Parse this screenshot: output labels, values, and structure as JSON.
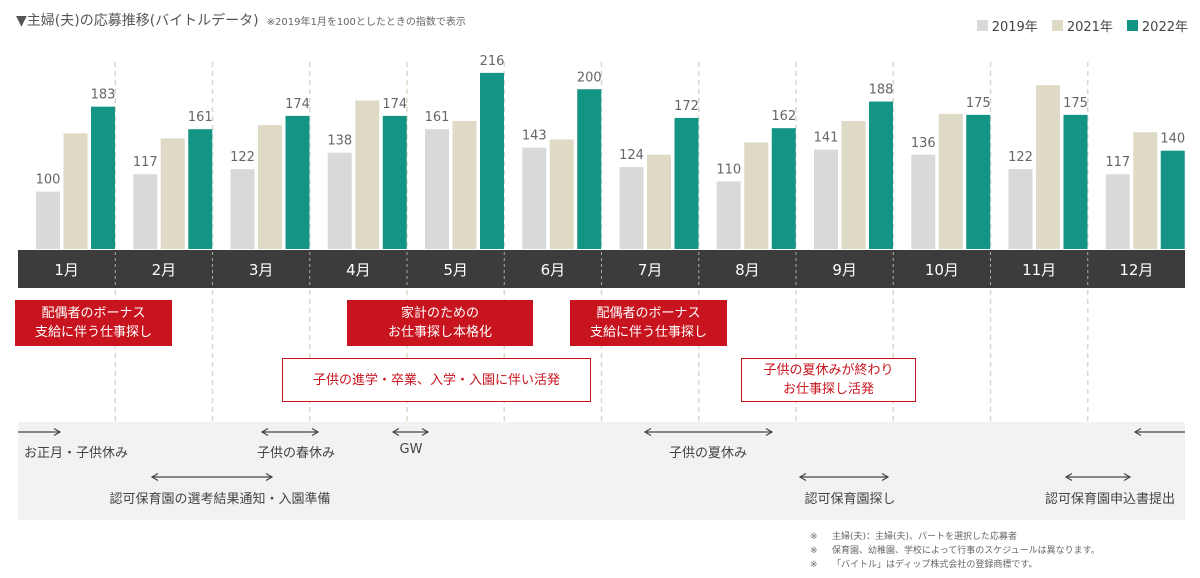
{
  "title": "▼主婦(夫)の応募推移(バイトルデータ)",
  "subtitle": "※2019年1月を100としたときの指数で表示",
  "chart_data": {
    "type": "bar",
    "categories": [
      "1月",
      "2月",
      "3月",
      "4月",
      "5月",
      "6月",
      "7月",
      "8月",
      "9月",
      "10月",
      "11月",
      "12月"
    ],
    "series": [
      {
        "name": "2019年",
        "color": "#d9d9d9",
        "labeled": true,
        "values": [
          100,
          117,
          122,
          138,
          161,
          143,
          124,
          110,
          141,
          136,
          122,
          117
        ]
      },
      {
        "name": "2021年",
        "color": "#dedac5",
        "labeled": false,
        "values": [
          157,
          152,
          165,
          189,
          169,
          151,
          136,
          148,
          169,
          176,
          204,
          158
        ]
      },
      {
        "name": "2022年",
        "color": "#149484",
        "labeled": true,
        "values": [
          183,
          161,
          174,
          174,
          216,
          200,
          172,
          162,
          188,
          175,
          175,
          140
        ]
      }
    ],
    "ylim": [
      44,
      230
    ],
    "xlabel": "",
    "ylabel": "",
    "legend": "top-right"
  },
  "callouts_filled": [
    {
      "text": [
        "配偶者のボーナス",
        "支給に伴う仕事探し"
      ]
    },
    {
      "text": [
        "家計のための",
        "お仕事探し本格化"
      ]
    },
    {
      "text": [
        "配偶者のボーナス",
        "支給に伴う仕事探し"
      ]
    }
  ],
  "callouts_outline": [
    {
      "text": [
        "子供の進学・卒業、入学・入園に伴い活発"
      ]
    },
    {
      "text": [
        "子供の夏休みが終わり",
        "お仕事探し活発"
      ]
    }
  ],
  "events": [
    "お正月・子供休み",
    "子供の春休み",
    "GW",
    "子供の夏休み",
    "認可保育園の選考結果通知・入園準備",
    "認可保育園探し",
    "認可保育園申込書提出"
  ],
  "notes": [
    {
      "mark": "※",
      "text": "主婦(夫)：主婦(夫)、パートを選択した応募者"
    },
    {
      "mark": "※",
      "text": "保育園、幼稚園、学校によって行事のスケジュールは異なります。"
    },
    {
      "mark": "※",
      "text": "「バイトル」はディップ株式会社の登録商標です。"
    }
  ]
}
